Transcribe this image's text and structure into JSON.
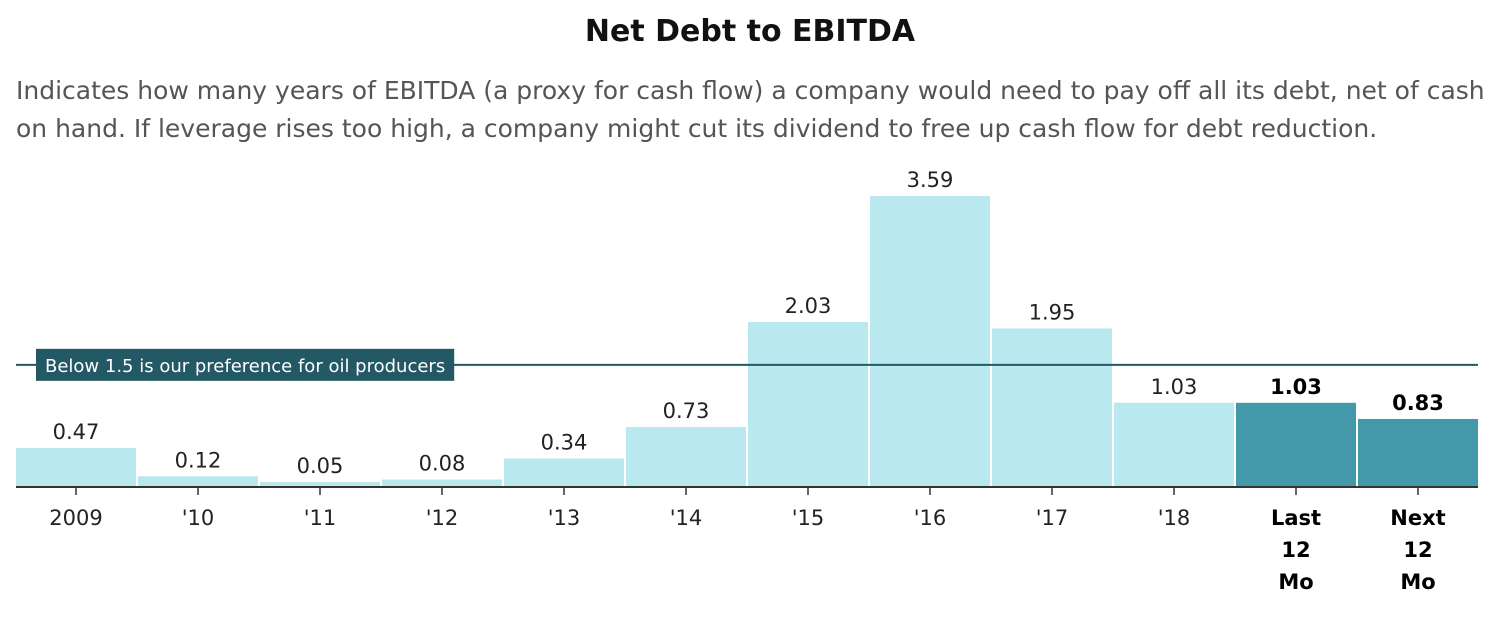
{
  "chart_data": {
    "type": "bar",
    "title": "Net Debt to EBITDA",
    "subtitle": "Indicates how many years of EBITDA (a proxy for cash flow) a company would need to pay off all its debt, net of cash on hand. If leverage rises too high, a company might cut its dividend to free up cash flow for debt reduction.",
    "categories": [
      [
        "2009"
      ],
      [
        "'10"
      ],
      [
        "'11"
      ],
      [
        "'12"
      ],
      [
        "'13"
      ],
      [
        "'14"
      ],
      [
        "'15"
      ],
      [
        "'16"
      ],
      [
        "'17"
      ],
      [
        "'18"
      ],
      [
        "Last",
        "12",
        "Mo"
      ],
      [
        "Next",
        "12",
        "Mo"
      ]
    ],
    "values": [
      0.47,
      0.12,
      0.05,
      0.08,
      0.34,
      0.73,
      2.03,
      3.59,
      1.95,
      1.03,
      1.03,
      0.83
    ],
    "value_labels": [
      "0.47",
      "0.12",
      "0.05",
      "0.08",
      "0.34",
      "0.73",
      "2.03",
      "3.59",
      "1.95",
      "1.03",
      "1.03",
      "0.83"
    ],
    "highlighted": [
      false,
      false,
      false,
      false,
      false,
      false,
      false,
      false,
      false,
      false,
      true,
      true
    ],
    "reference_line": {
      "value": 1.5,
      "label": "Below 1.5 is our preference for oil producers"
    },
    "ylim": [
      0,
      3.59
    ],
    "xlabel": "",
    "ylabel": "",
    "grid": false,
    "colors": {
      "bar": "#b9e8ee",
      "bar_highlight": "#4398a9",
      "reference_line": "#235865",
      "reference_label_bg": "#235865",
      "axis": "#333333"
    }
  }
}
